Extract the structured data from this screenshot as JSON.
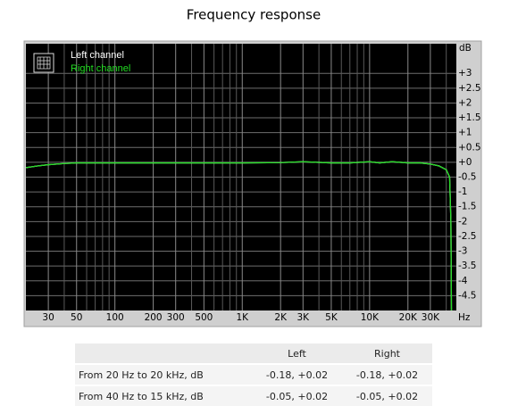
{
  "chart_data": {
    "type": "line",
    "title": "Frequency response",
    "x_label": "Hz",
    "y_label": "dB",
    "x_scale": "log",
    "xlim": [
      20,
      48000
    ],
    "ylim": [
      -5,
      4
    ],
    "xticks": [
      30,
      50,
      100,
      200,
      300,
      500,
      {
        "value": 1000,
        "label": "1K"
      },
      {
        "value": 2000,
        "label": "2K"
      },
      {
        "value": 3000,
        "label": "3K"
      },
      {
        "value": 5000,
        "label": "5K"
      },
      {
        "value": 10000,
        "label": "10K"
      },
      {
        "value": 20000,
        "label": "20K"
      },
      {
        "value": 30000,
        "label": "30K"
      }
    ],
    "xminor": [
      40,
      60,
      70,
      80,
      90,
      400,
      600,
      700,
      800,
      900,
      4000,
      6000,
      7000,
      8000,
      9000,
      40000
    ],
    "yticks": [
      {
        "value": 3,
        "label": "+3"
      },
      {
        "value": 2.5,
        "label": "+2.5"
      },
      {
        "value": 2,
        "label": "+2"
      },
      {
        "value": 1.5,
        "label": "+1.5"
      },
      {
        "value": 1,
        "label": "+1"
      },
      {
        "value": 0.5,
        "label": "+0.5"
      },
      {
        "value": 0,
        "label": "+0"
      },
      -0.5,
      -1,
      -1.5,
      -2,
      -2.5,
      -3,
      -3.5,
      -4,
      -4.5
    ],
    "grid": true,
    "legend": "upper left",
    "x": [
      20,
      25,
      30,
      40,
      50,
      70,
      100,
      200,
      500,
      1000,
      2000,
      3000,
      5000,
      7000,
      10000,
      12000,
      15000,
      20000,
      25000,
      30000,
      35000,
      40000,
      42500,
      43500,
      44000
    ],
    "series": [
      {
        "name": "Left channel",
        "color": "#ffffff",
        "values": [
          -0.18,
          -0.12,
          -0.08,
          -0.04,
          -0.02,
          -0.02,
          -0.02,
          -0.02,
          -0.02,
          -0.02,
          -0.01,
          0.02,
          -0.02,
          -0.02,
          0.02,
          -0.02,
          0.02,
          -0.02,
          -0.02,
          -0.06,
          -0.12,
          -0.25,
          -0.5,
          -2,
          -5.5
        ]
      },
      {
        "name": "Right channel",
        "color": "#22dd22",
        "values": [
          -0.18,
          -0.12,
          -0.08,
          -0.04,
          -0.02,
          -0.02,
          -0.02,
          -0.02,
          -0.02,
          -0.02,
          -0.01,
          0.02,
          -0.02,
          -0.02,
          0.02,
          -0.02,
          0.02,
          -0.02,
          -0.02,
          -0.06,
          -0.12,
          -0.25,
          -0.5,
          -2,
          -5.5
        ]
      }
    ]
  },
  "table": {
    "columns": [
      "Left",
      "Right"
    ],
    "rows": [
      [
        "From 20 Hz to 20 kHz, dB",
        "-0.18, +0.02",
        "-0.18, +0.02"
      ],
      [
        "From 40 Hz to 15 kHz, dB",
        "-0.05, +0.02",
        "-0.05, +0.02"
      ]
    ]
  }
}
